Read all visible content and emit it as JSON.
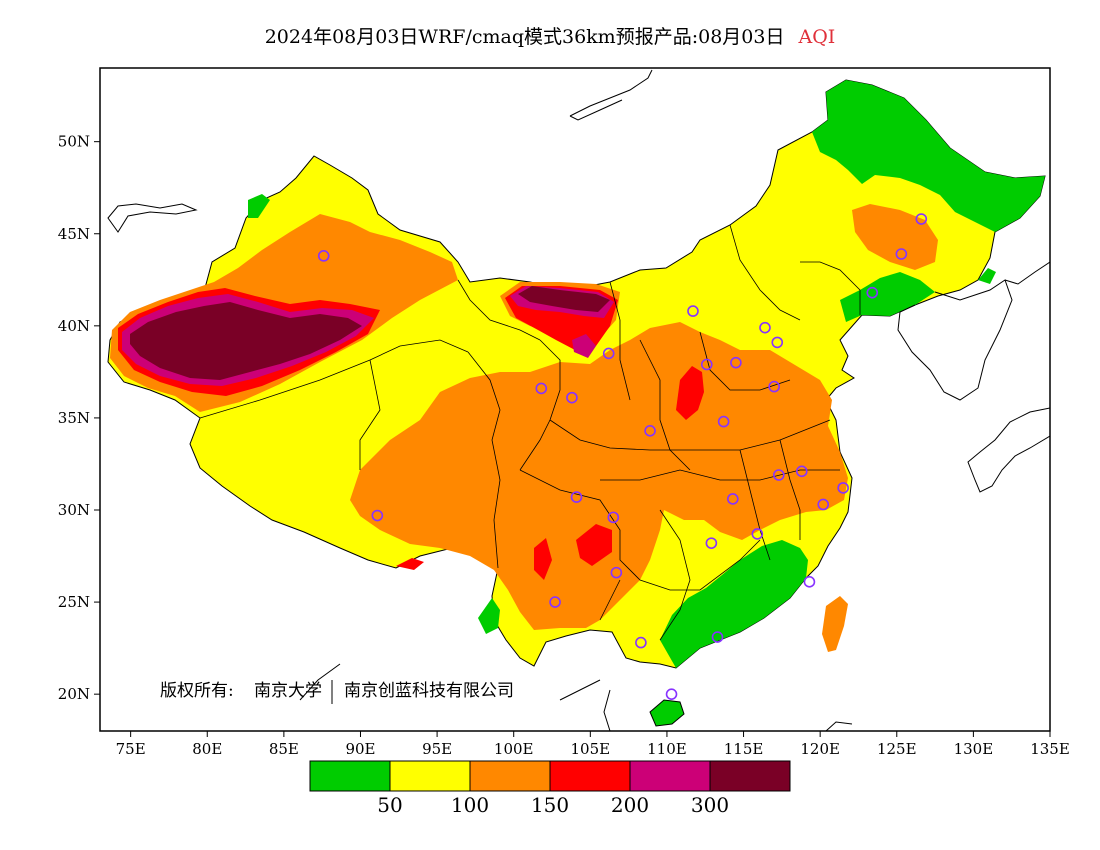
{
  "title": {
    "text": "2024年08月03日WRF/cmaq模式36km预报产品:08月03日",
    "variable": "AQI"
  },
  "axes": {
    "lon_range": [
      73,
      135
    ],
    "lat_range": [
      18,
      54
    ],
    "x_ticks": [
      "75E",
      "80E",
      "85E",
      "90E",
      "95E",
      "100E",
      "105E",
      "110E",
      "115E",
      "120E",
      "125E",
      "130E",
      "135E"
    ],
    "y_ticks": [
      "20N",
      "25N",
      "30N",
      "35N",
      "40N",
      "45N",
      "50N"
    ]
  },
  "copyright": {
    "prefix": "版权所有:",
    "org1": "南京大学",
    "org2": "南京创蓝科技有限公司"
  },
  "legend": {
    "colors": [
      "#00cc00",
      "#ffff00",
      "#ff8800",
      "#ff0000",
      "#cc0077",
      "#7a0026"
    ],
    "labels": [
      "50",
      "100",
      "150",
      "200",
      "300"
    ]
  },
  "colors": {
    "good": "#00cc00",
    "moderate": "#ffff00",
    "usg": "#ff8800",
    "unhealthy": "#ff0000",
    "very_unhealthy": "#cc0077",
    "hazardous": "#7a0026",
    "station_marker": "#8833ff"
  },
  "stations": [
    {
      "lon": 87.6,
      "lat": 43.8
    },
    {
      "lon": 91.1,
      "lat": 29.7
    },
    {
      "lon": 101.8,
      "lat": 36.6
    },
    {
      "lon": 103.8,
      "lat": 36.1
    },
    {
      "lon": 106.2,
      "lat": 38.5
    },
    {
      "lon": 111.7,
      "lat": 40.8
    },
    {
      "lon": 112.6,
      "lat": 37.9
    },
    {
      "lon": 114.5,
      "lat": 38.0
    },
    {
      "lon": 116.4,
      "lat": 39.9
    },
    {
      "lon": 117.2,
      "lat": 39.1
    },
    {
      "lon": 117.0,
      "lat": 36.7
    },
    {
      "lon": 113.7,
      "lat": 34.8
    },
    {
      "lon": 108.9,
      "lat": 34.3
    },
    {
      "lon": 104.1,
      "lat": 30.7
    },
    {
      "lon": 106.5,
      "lat": 29.6
    },
    {
      "lon": 106.7,
      "lat": 26.6
    },
    {
      "lon": 102.7,
      "lat": 25.0
    },
    {
      "lon": 108.3,
      "lat": 22.8
    },
    {
      "lon": 113.3,
      "lat": 23.1
    },
    {
      "lon": 110.3,
      "lat": 20.0
    },
    {
      "lon": 112.9,
      "lat": 28.2
    },
    {
      "lon": 114.3,
      "lat": 30.6
    },
    {
      "lon": 115.9,
      "lat": 28.7
    },
    {
      "lon": 117.3,
      "lat": 31.9
    },
    {
      "lon": 118.8,
      "lat": 32.1
    },
    {
      "lon": 120.2,
      "lat": 30.3
    },
    {
      "lon": 121.5,
      "lat": 31.2
    },
    {
      "lon": 119.3,
      "lat": 26.1
    },
    {
      "lon": 123.4,
      "lat": 41.8
    },
    {
      "lon": 125.3,
      "lat": 43.9
    },
    {
      "lon": 126.6,
      "lat": 45.8
    }
  ]
}
